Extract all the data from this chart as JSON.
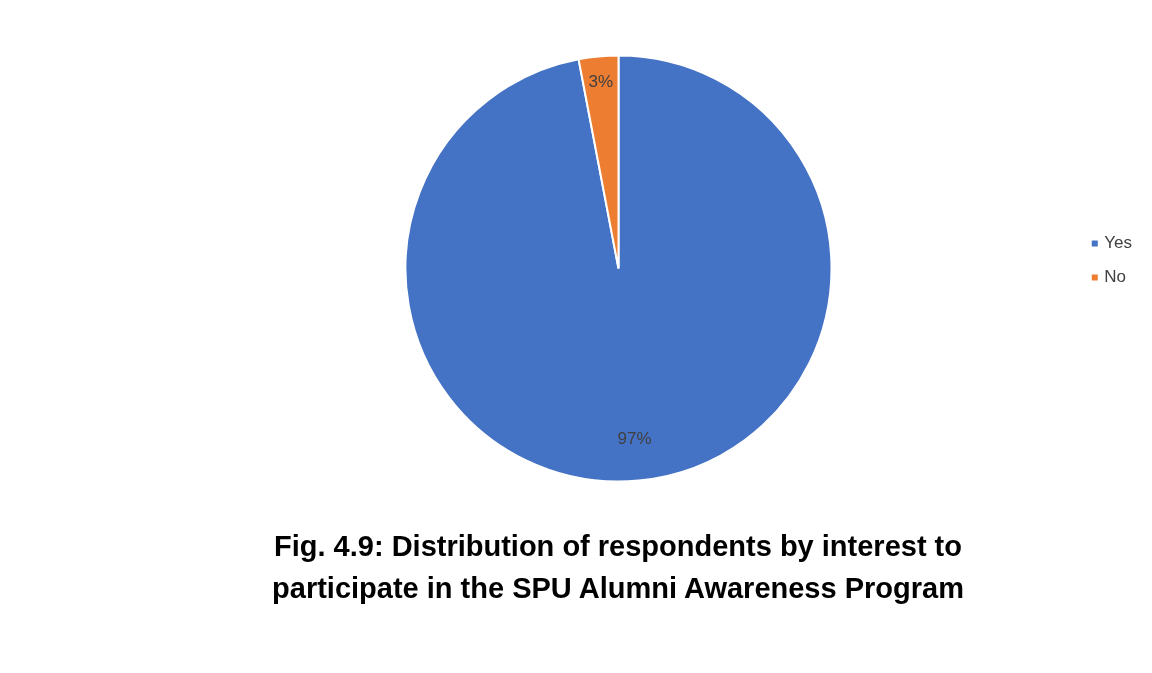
{
  "chart_data": {
    "type": "pie",
    "title": "Fig. 4.9: Distribution of respondents by interest to participate in the SPU Alumni Awareness Program",
    "categories": [
      "Yes",
      "No"
    ],
    "values": [
      97,
      3
    ],
    "colors": [
      "#4472c4",
      "#ed7d31"
    ],
    "value_labels": [
      "97%",
      "3%"
    ],
    "legend": "right"
  }
}
